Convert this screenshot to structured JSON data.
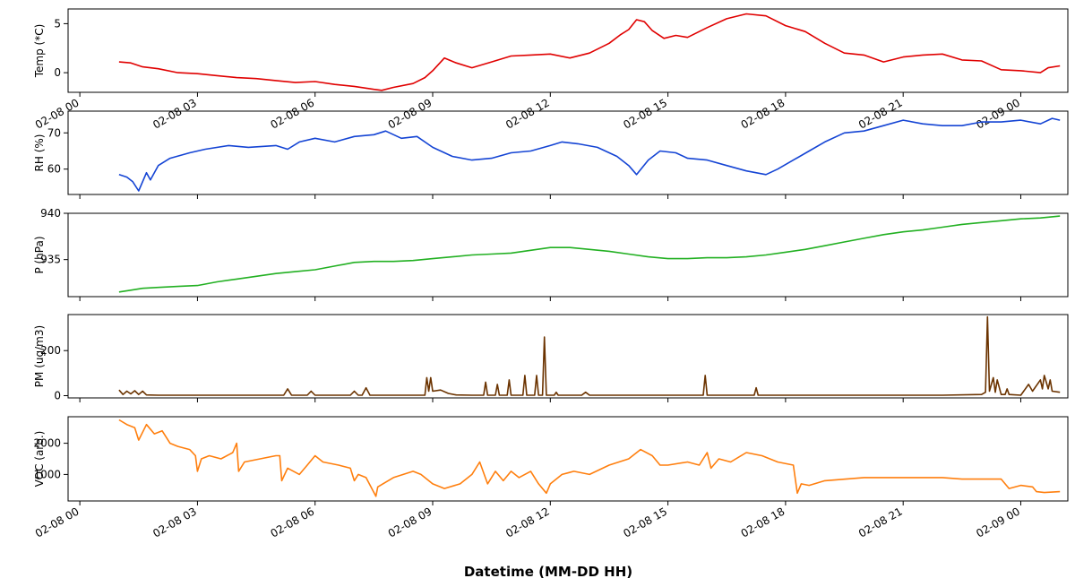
{
  "figure": {
    "xlabel": "Datetime (MM-DD HH)"
  },
  "chart_data": [
    {
      "type": "line",
      "ylabel": "Temp (*C)",
      "color": "#e00000",
      "ylim": [
        -2,
        6.5
      ],
      "yticks": [
        0,
        5
      ],
      "xlim": [
        -0.3,
        25.2
      ],
      "x_ticks": [
        0,
        3,
        6,
        9,
        12,
        15,
        18,
        21,
        24
      ],
      "x_tick_labels": [
        "02-08 00",
        "02-08 03",
        "02-08 06",
        "02-08 09",
        "02-08 12",
        "02-08 15",
        "02-08 18",
        "02-08 21",
        "02-09 00"
      ],
      "x": [
        1.0,
        1.3,
        1.6,
        2.0,
        2.5,
        3.0,
        3.5,
        4.0,
        4.5,
        5.0,
        5.5,
        6.0,
        6.5,
        7.0,
        7.5,
        7.7,
        8.0,
        8.5,
        8.8,
        9.0,
        9.3,
        9.6,
        10.0,
        10.5,
        11.0,
        11.5,
        12.0,
        12.5,
        13.0,
        13.5,
        13.8,
        14.0,
        14.2,
        14.4,
        14.6,
        14.9,
        15.2,
        15.5,
        16.0,
        16.5,
        17.0,
        17.5,
        18.0,
        18.5,
        19.0,
        19.5,
        20.0,
        20.5,
        21.0,
        21.5,
        22.0,
        22.5,
        23.0,
        23.5,
        24.0,
        24.5,
        24.7,
        25.0
      ],
      "y": [
        1.1,
        1.0,
        0.6,
        0.4,
        0.0,
        -0.1,
        -0.3,
        -0.5,
        -0.6,
        -0.8,
        -1.0,
        -0.9,
        -1.2,
        -1.4,
        -1.7,
        -1.8,
        -1.5,
        -1.1,
        -0.5,
        0.2,
        1.5,
        1.0,
        0.5,
        1.1,
        1.7,
        1.8,
        1.9,
        1.5,
        2.0,
        3.0,
        3.9,
        4.4,
        5.4,
        5.2,
        4.3,
        3.5,
        3.8,
        3.6,
        4.6,
        5.5,
        6.0,
        5.8,
        4.8,
        4.2,
        3.0,
        2.0,
        1.8,
        1.1,
        1.6,
        1.8,
        1.9,
        1.3,
        1.2,
        0.3,
        0.2,
        0.0,
        0.5,
        0.7
      ]
    },
    {
      "type": "line",
      "ylabel": "RH (%)",
      "color": "#1444d4",
      "ylim": [
        53,
        76
      ],
      "yticks": [
        60,
        70
      ],
      "xlim": [
        -0.3,
        25.2
      ],
      "x_ticks": [
        0,
        3,
        6,
        9,
        12,
        15,
        18,
        21,
        24
      ],
      "x_tick_labels": [
        "",
        "",
        "",
        "",
        "",
        "",
        "",
        "",
        ""
      ],
      "x": [
        1.0,
        1.2,
        1.35,
        1.5,
        1.7,
        1.8,
        2.0,
        2.3,
        2.8,
        3.2,
        3.8,
        4.3,
        5.0,
        5.3,
        5.6,
        6.0,
        6.5,
        7.0,
        7.5,
        7.8,
        8.2,
        8.6,
        9.0,
        9.5,
        10.0,
        10.5,
        11.0,
        11.5,
        12.0,
        12.3,
        12.7,
        13.2,
        13.7,
        14.0,
        14.2,
        14.5,
        14.8,
        15.2,
        15.5,
        16.0,
        16.5,
        17.0,
        17.5,
        17.8,
        18.2,
        18.6,
        19.0,
        19.5,
        20.0,
        20.5,
        21.0,
        21.5,
        22.0,
        22.5,
        23.0,
        23.5,
        24.0,
        24.5,
        24.8,
        25.0
      ],
      "y": [
        58.5,
        57.8,
        56.5,
        54.0,
        59.0,
        57.0,
        61.0,
        63.0,
        64.5,
        65.5,
        66.5,
        66.0,
        66.5,
        65.5,
        67.5,
        68.5,
        67.5,
        69.0,
        69.5,
        70.5,
        68.5,
        69.0,
        66.0,
        63.5,
        62.5,
        63.0,
        64.5,
        65.0,
        66.5,
        67.5,
        67.0,
        66.0,
        63.5,
        61.0,
        58.5,
        62.5,
        65.0,
        64.5,
        63.0,
        62.5,
        61.0,
        59.5,
        58.5,
        60.0,
        62.5,
        65.0,
        67.5,
        70.0,
        70.5,
        72.0,
        73.5,
        72.5,
        72.0,
        72.0,
        73.0,
        73.0,
        73.5,
        72.5,
        74.0,
        73.5
      ]
    },
    {
      "type": "line",
      "ylabel": "P (hPa)",
      "color": "#22b022",
      "ylim": [
        931,
        940
      ],
      "yticks": [
        935,
        940
      ],
      "xlim": [
        -0.3,
        25.2
      ],
      "x_ticks": [
        0,
        3,
        6,
        9,
        12,
        15,
        18,
        21,
        24
      ],
      "x_tick_labels": [
        "",
        "",
        "",
        "",
        "",
        "",
        "",
        "",
        ""
      ],
      "x": [
        1.0,
        1.3,
        1.6,
        2.0,
        2.5,
        3.0,
        3.5,
        4.0,
        4.5,
        5.0,
        5.5,
        6.0,
        6.5,
        7.0,
        7.5,
        8.0,
        8.5,
        9.0,
        9.5,
        10.0,
        10.5,
        11.0,
        11.5,
        12.0,
        12.5,
        13.0,
        13.5,
        14.0,
        14.5,
        15.0,
        15.5,
        16.0,
        16.5,
        17.0,
        17.5,
        18.0,
        18.5,
        19.0,
        19.5,
        20.0,
        20.5,
        21.0,
        21.5,
        22.0,
        22.5,
        23.0,
        23.5,
        24.0,
        24.5,
        25.0
      ],
      "y": [
        931.5,
        931.7,
        931.9,
        932.0,
        932.1,
        932.2,
        932.6,
        932.9,
        933.2,
        933.5,
        933.7,
        933.9,
        934.3,
        934.7,
        934.8,
        934.8,
        934.9,
        935.1,
        935.3,
        935.5,
        935.6,
        935.7,
        936.0,
        936.3,
        936.3,
        936.1,
        935.9,
        935.6,
        935.3,
        935.1,
        935.1,
        935.2,
        935.2,
        935.3,
        935.5,
        935.8,
        936.1,
        936.5,
        936.9,
        937.3,
        937.7,
        938.0,
        938.2,
        938.5,
        938.8,
        939.0,
        939.2,
        939.4,
        939.5,
        939.7
      ]
    },
    {
      "type": "line",
      "ylabel": "PM (ug/m3)",
      "color": "#6b3300",
      "ylim": [
        -10,
        360
      ],
      "yticks": [
        0,
        200
      ],
      "xlim": [
        -0.3,
        25.2
      ],
      "x_ticks": [
        0,
        3,
        6,
        9,
        12,
        15,
        18,
        21,
        24
      ],
      "x_tick_labels": [
        "",
        "",
        "",
        "",
        "",
        "",
        "",
        "",
        ""
      ],
      "x": [
        1.0,
        1.1,
        1.2,
        1.3,
        1.4,
        1.5,
        1.6,
        1.7,
        2.0,
        3.0,
        4.0,
        5.0,
        5.2,
        5.3,
        5.4,
        5.8,
        5.9,
        6.0,
        6.9,
        7.0,
        7.1,
        7.2,
        7.3,
        7.4,
        8.0,
        8.8,
        8.85,
        8.9,
        8.95,
        9.0,
        9.2,
        9.4,
        9.6,
        10.0,
        10.3,
        10.35,
        10.4,
        10.6,
        10.65,
        10.7,
        10.9,
        10.95,
        11.0,
        11.3,
        11.35,
        11.4,
        11.6,
        11.65,
        11.7,
        11.8,
        11.85,
        11.9,
        12.1,
        12.15,
        12.2,
        12.8,
        12.9,
        13.0,
        14.5,
        15.0,
        15.2,
        15.9,
        15.95,
        16.0,
        16.5,
        17.2,
        17.25,
        17.3,
        17.5,
        18.0,
        20.0,
        22.0,
        23.0,
        23.1,
        23.15,
        23.2,
        23.3,
        23.35,
        23.4,
        23.5,
        23.6,
        23.65,
        23.7,
        24.0,
        24.2,
        24.3,
        24.5,
        24.55,
        24.6,
        24.7,
        24.75,
        24.8,
        25.0
      ],
      "y": [
        25,
        5,
        20,
        8,
        22,
        5,
        20,
        3,
        2,
        2,
        2,
        2,
        2,
        30,
        2,
        2,
        20,
        2,
        2,
        20,
        2,
        2,
        35,
        2,
        2,
        2,
        80,
        20,
        80,
        20,
        25,
        10,
        3,
        2,
        2,
        60,
        2,
        2,
        50,
        2,
        2,
        70,
        2,
        2,
        90,
        2,
        2,
        90,
        2,
        2,
        260,
        2,
        2,
        15,
        2,
        2,
        15,
        2,
        2,
        2,
        2,
        2,
        90,
        2,
        2,
        2,
        35,
        2,
        2,
        2,
        2,
        2,
        5,
        15,
        350,
        20,
        80,
        15,
        70,
        5,
        5,
        30,
        5,
        2,
        50,
        20,
        70,
        30,
        90,
        30,
        70,
        20,
        15
      ]
    },
    {
      "type": "line",
      "ylabel": "VOC (arb.)",
      "color": "#ff7f0e",
      "ylim": [
        150,
        2850
      ],
      "yticks": [
        1000,
        2000
      ],
      "xlim": [
        -0.3,
        25.2
      ],
      "x_ticks": [
        0,
        3,
        6,
        9,
        12,
        15,
        18,
        21,
        24
      ],
      "x_tick_labels": [
        "02-08 00",
        "02-08 03",
        "02-08 06",
        "02-08 09",
        "02-08 12",
        "02-08 15",
        "02-08 18",
        "02-08 21",
        "02-09 00"
      ],
      "x": [
        1.0,
        1.2,
        1.4,
        1.5,
        1.7,
        1.9,
        2.1,
        2.3,
        2.5,
        2.8,
        2.95,
        3.0,
        3.1,
        3.3,
        3.6,
        3.9,
        4.0,
        4.05,
        4.2,
        4.6,
        5.0,
        5.1,
        5.15,
        5.3,
        5.6,
        5.8,
        6.0,
        6.2,
        6.6,
        6.9,
        7.0,
        7.1,
        7.3,
        7.55,
        7.6,
        8.0,
        8.5,
        8.7,
        9.0,
        9.3,
        9.7,
        10.0,
        10.2,
        10.4,
        10.6,
        10.8,
        11.0,
        11.2,
        11.5,
        11.7,
        11.9,
        12.0,
        12.3,
        12.6,
        13.0,
        13.5,
        14.0,
        14.3,
        14.6,
        14.8,
        15.0,
        15.5,
        15.8,
        16.0,
        16.1,
        16.3,
        16.6,
        17.0,
        17.4,
        17.8,
        18.2,
        18.3,
        18.4,
        18.6,
        19.0,
        20.0,
        21.0,
        22.0,
        22.5,
        23.0,
        23.5,
        23.7,
        24.0,
        24.3,
        24.4,
        24.6,
        25.0
      ],
      "y": [
        2750,
        2600,
        2500,
        2100,
        2600,
        2300,
        2400,
        2000,
        1900,
        1800,
        1600,
        1100,
        1500,
        1600,
        1500,
        1700,
        2000,
        1100,
        1400,
        1500,
        1600,
        1600,
        800,
        1200,
        1000,
        1300,
        1600,
        1400,
        1300,
        1200,
        800,
        1000,
        900,
        300,
        600,
        900,
        1100,
        1000,
        700,
        550,
        700,
        1000,
        1400,
        700,
        1100,
        800,
        1100,
        900,
        1100,
        700,
        400,
        700,
        1000,
        1100,
        1000,
        1300,
        1500,
        1800,
        1600,
        1300,
        1300,
        1400,
        1300,
        1700,
        1200,
        1500,
        1400,
        1700,
        1600,
        1400,
        1300,
        400,
        700,
        650,
        800,
        900,
        900,
        900,
        850,
        850,
        850,
        550,
        650,
        600,
        450,
        420,
        450
      ]
    }
  ]
}
